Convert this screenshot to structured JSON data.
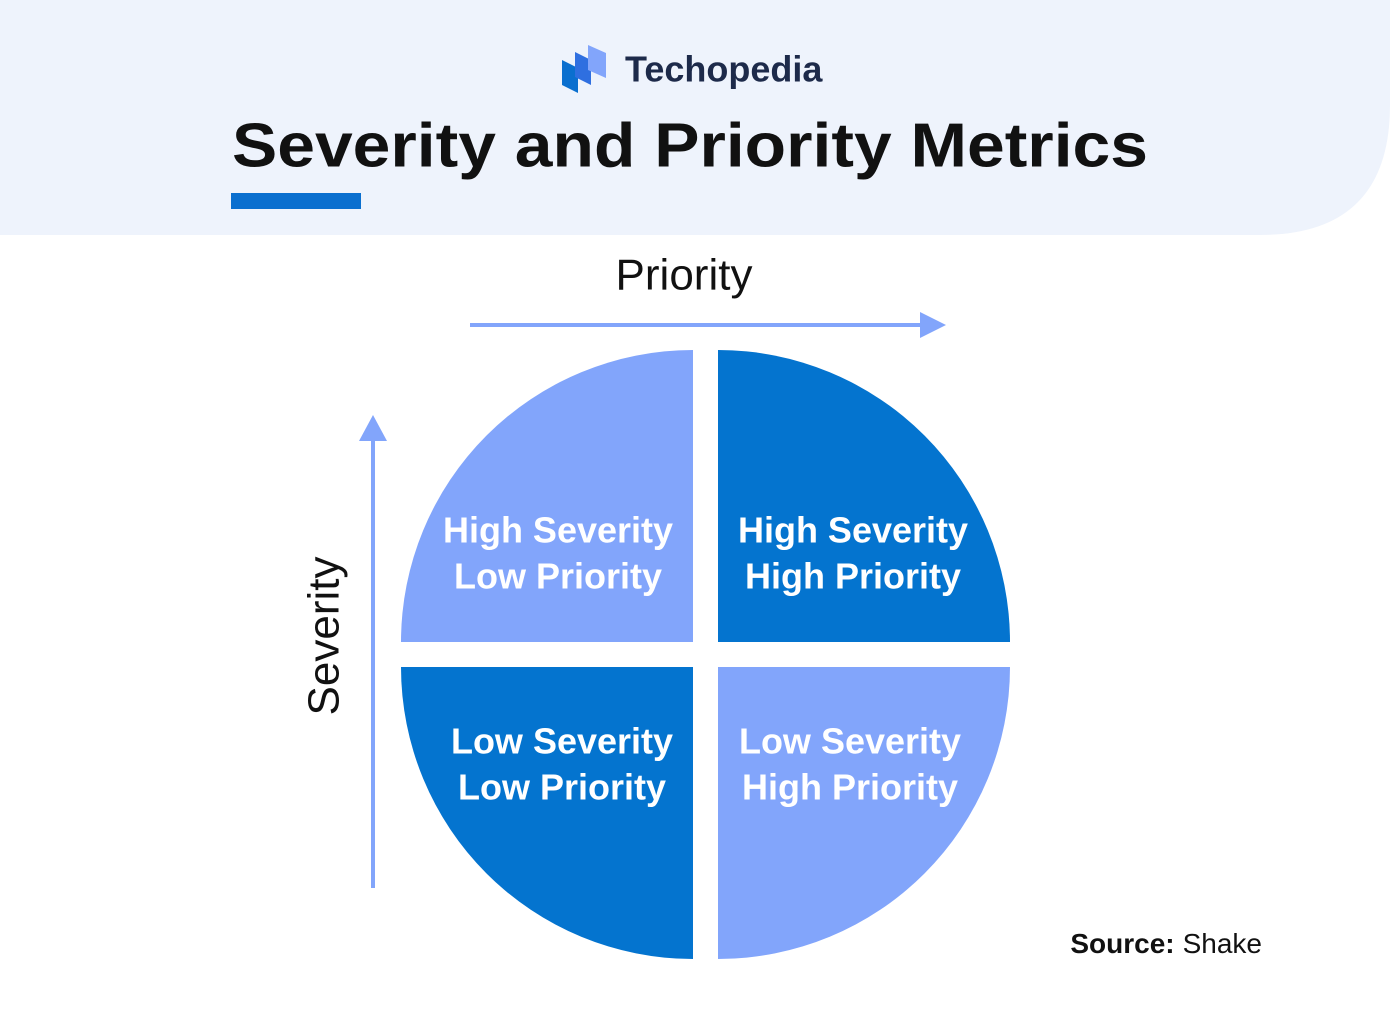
{
  "header": {
    "brand": "Techopedia",
    "title": "Severity and Priority Metrics"
  },
  "axes": {
    "x": "Priority",
    "y": "Severity"
  },
  "quadrants": [
    {
      "lines": [
        "High Severity",
        "Low Priority"
      ]
    },
    {
      "lines": [
        "High Severity",
        "High Priority"
      ]
    },
    {
      "lines": [
        "Low Severity",
        "Low Priority"
      ]
    },
    {
      "lines": [
        "Low Severity",
        "High Priority"
      ]
    }
  ],
  "source": {
    "label": "Source:",
    "name": "Shake"
  }
}
